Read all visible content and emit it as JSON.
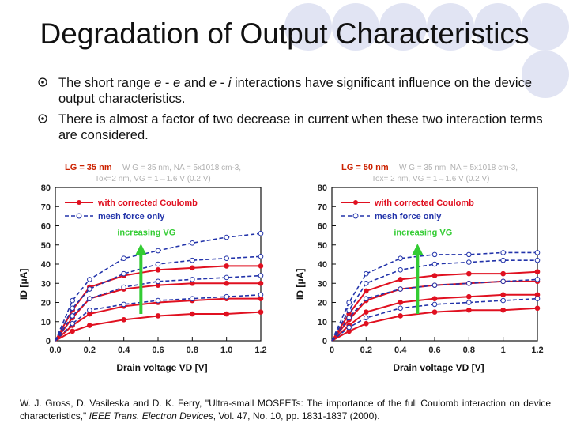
{
  "title": "Degradation of Output Characteristics",
  "bullets": [
    {
      "pre": "The short range ",
      "em1": "e",
      "mid1": " - ",
      "em2": "e",
      "mid2": " and ",
      "em3": "e",
      "mid3": " - ",
      "em4": "i",
      "post": "  interactions have significant influence on the device output characteristics."
    },
    {
      "text": "There is almost a factor of two decrease in current when these two interaction terms are considered."
    }
  ],
  "citation": {
    "pre": "W. J. Gross, D. Vasileska and D. K. Ferry, \"Ultra-small MOSFETs: The importance of the full Coulomb interaction on device characteristics,\" ",
    "journal": "IEEE Trans. Electron Devices",
    "post": ", Vol. 47, No. 10, pp. 1831-1837 (2000)."
  },
  "colors": {
    "red": "#e01020",
    "blue": "#2233aa",
    "arrow": "#33cc33"
  },
  "chart_data": [
    {
      "type": "line",
      "title": "LG = 35 nm",
      "subtitle_line1": "W G = 35 nm, NA = 5x1018 cm-3,",
      "subtitle_line2": "Tox=2 nm, VG = 1→1.6 V (0.2 V)",
      "xlabel": "Drain voltage VD  [V]",
      "ylabel": "ID [μA]",
      "annotation": "increasing VG",
      "legend": [
        "with corrected Coulomb",
        "mesh force only"
      ],
      "xlim": [
        0,
        1.2
      ],
      "ylim": [
        0,
        80
      ],
      "xticks": [
        "0.0",
        "0.2",
        "0.4",
        "0.6",
        "0.8",
        "1.0",
        "1.2"
      ],
      "yticks": [
        "0",
        "10",
        "20",
        "30",
        "40",
        "50",
        "60",
        "70",
        "80"
      ],
      "x": [
        0,
        0.1,
        0.2,
        0.4,
        0.6,
        0.8,
        1.0,
        1.2
      ],
      "series": [
        {
          "name": "with corrected Coulomb",
          "style": "solid",
          "values": [
            0,
            5,
            8,
            11,
            13,
            14,
            14,
            15
          ]
        },
        {
          "name": "with corrected Coulomb",
          "style": "solid",
          "values": [
            0,
            8,
            14,
            18,
            20,
            21,
            22,
            22
          ]
        },
        {
          "name": "with corrected Coulomb",
          "style": "solid",
          "values": [
            0,
            12,
            22,
            27,
            29,
            30,
            30,
            30
          ]
        },
        {
          "name": "with corrected Coulomb",
          "style": "solid",
          "values": [
            0,
            16,
            28,
            34,
            37,
            38,
            39,
            39
          ]
        },
        {
          "name": "mesh force only",
          "style": "dashed",
          "values": [
            0,
            9,
            16,
            19,
            21,
            22,
            23,
            24
          ]
        },
        {
          "name": "mesh force only",
          "style": "dashed",
          "values": [
            0,
            13,
            22,
            28,
            31,
            32,
            33,
            34
          ]
        },
        {
          "name": "mesh force only",
          "style": "dashed",
          "values": [
            0,
            17,
            27,
            35,
            40,
            42,
            43,
            44
          ]
        },
        {
          "name": "mesh force only",
          "style": "dashed",
          "values": [
            0,
            21,
            32,
            43,
            47,
            51,
            54,
            56
          ]
        }
      ]
    },
    {
      "type": "line",
      "title": "LG = 50 nm",
      "subtitle_line1": "W G = 35 nm, NA = 5x1018 cm-3,",
      "subtitle_line2": "Tox= 2 nm, VG = 1→1.6 V (0.2 V)",
      "xlabel": "Drain voltage VD  [V]",
      "ylabel": "ID [μA]",
      "annotation": "increasing VG",
      "legend": [
        "with corrected Coulomb",
        "mesh force only"
      ],
      "xlim": [
        0,
        1.2
      ],
      "ylim": [
        0,
        80
      ],
      "xticks": [
        "0",
        "0.2",
        "0.4",
        "0.6",
        "0.8",
        "1",
        "1.2"
      ],
      "yticks": [
        "0",
        "10",
        "20",
        "30",
        "40",
        "50",
        "60",
        "70",
        "80"
      ],
      "x": [
        0,
        0.1,
        0.2,
        0.4,
        0.6,
        0.8,
        1.0,
        1.2
      ],
      "series": [
        {
          "name": "with corrected Coulomb",
          "style": "solid",
          "values": [
            0,
            5,
            9,
            13,
            15,
            16,
            16,
            17
          ]
        },
        {
          "name": "with corrected Coulomb",
          "style": "solid",
          "values": [
            0,
            8,
            15,
            20,
            22,
            23,
            24,
            24
          ]
        },
        {
          "name": "with corrected Coulomb",
          "style": "solid",
          "values": [
            0,
            11,
            21,
            27,
            29,
            30,
            31,
            31
          ]
        },
        {
          "name": "with corrected Coulomb",
          "style": "solid",
          "values": [
            0,
            14,
            26,
            32,
            34,
            35,
            35,
            36
          ]
        },
        {
          "name": "mesh force only",
          "style": "dashed",
          "values": [
            0,
            7,
            12,
            17,
            19,
            20,
            21,
            22
          ]
        },
        {
          "name": "mesh force only",
          "style": "dashed",
          "values": [
            0,
            12,
            22,
            27,
            29,
            30,
            31,
            32
          ]
        },
        {
          "name": "mesh force only",
          "style": "dashed",
          "values": [
            0,
            16,
            30,
            37,
            40,
            41,
            42,
            42
          ]
        },
        {
          "name": "mesh force only",
          "style": "dashed",
          "values": [
            0,
            20,
            35,
            43,
            45,
            45,
            46,
            46
          ]
        }
      ]
    }
  ]
}
